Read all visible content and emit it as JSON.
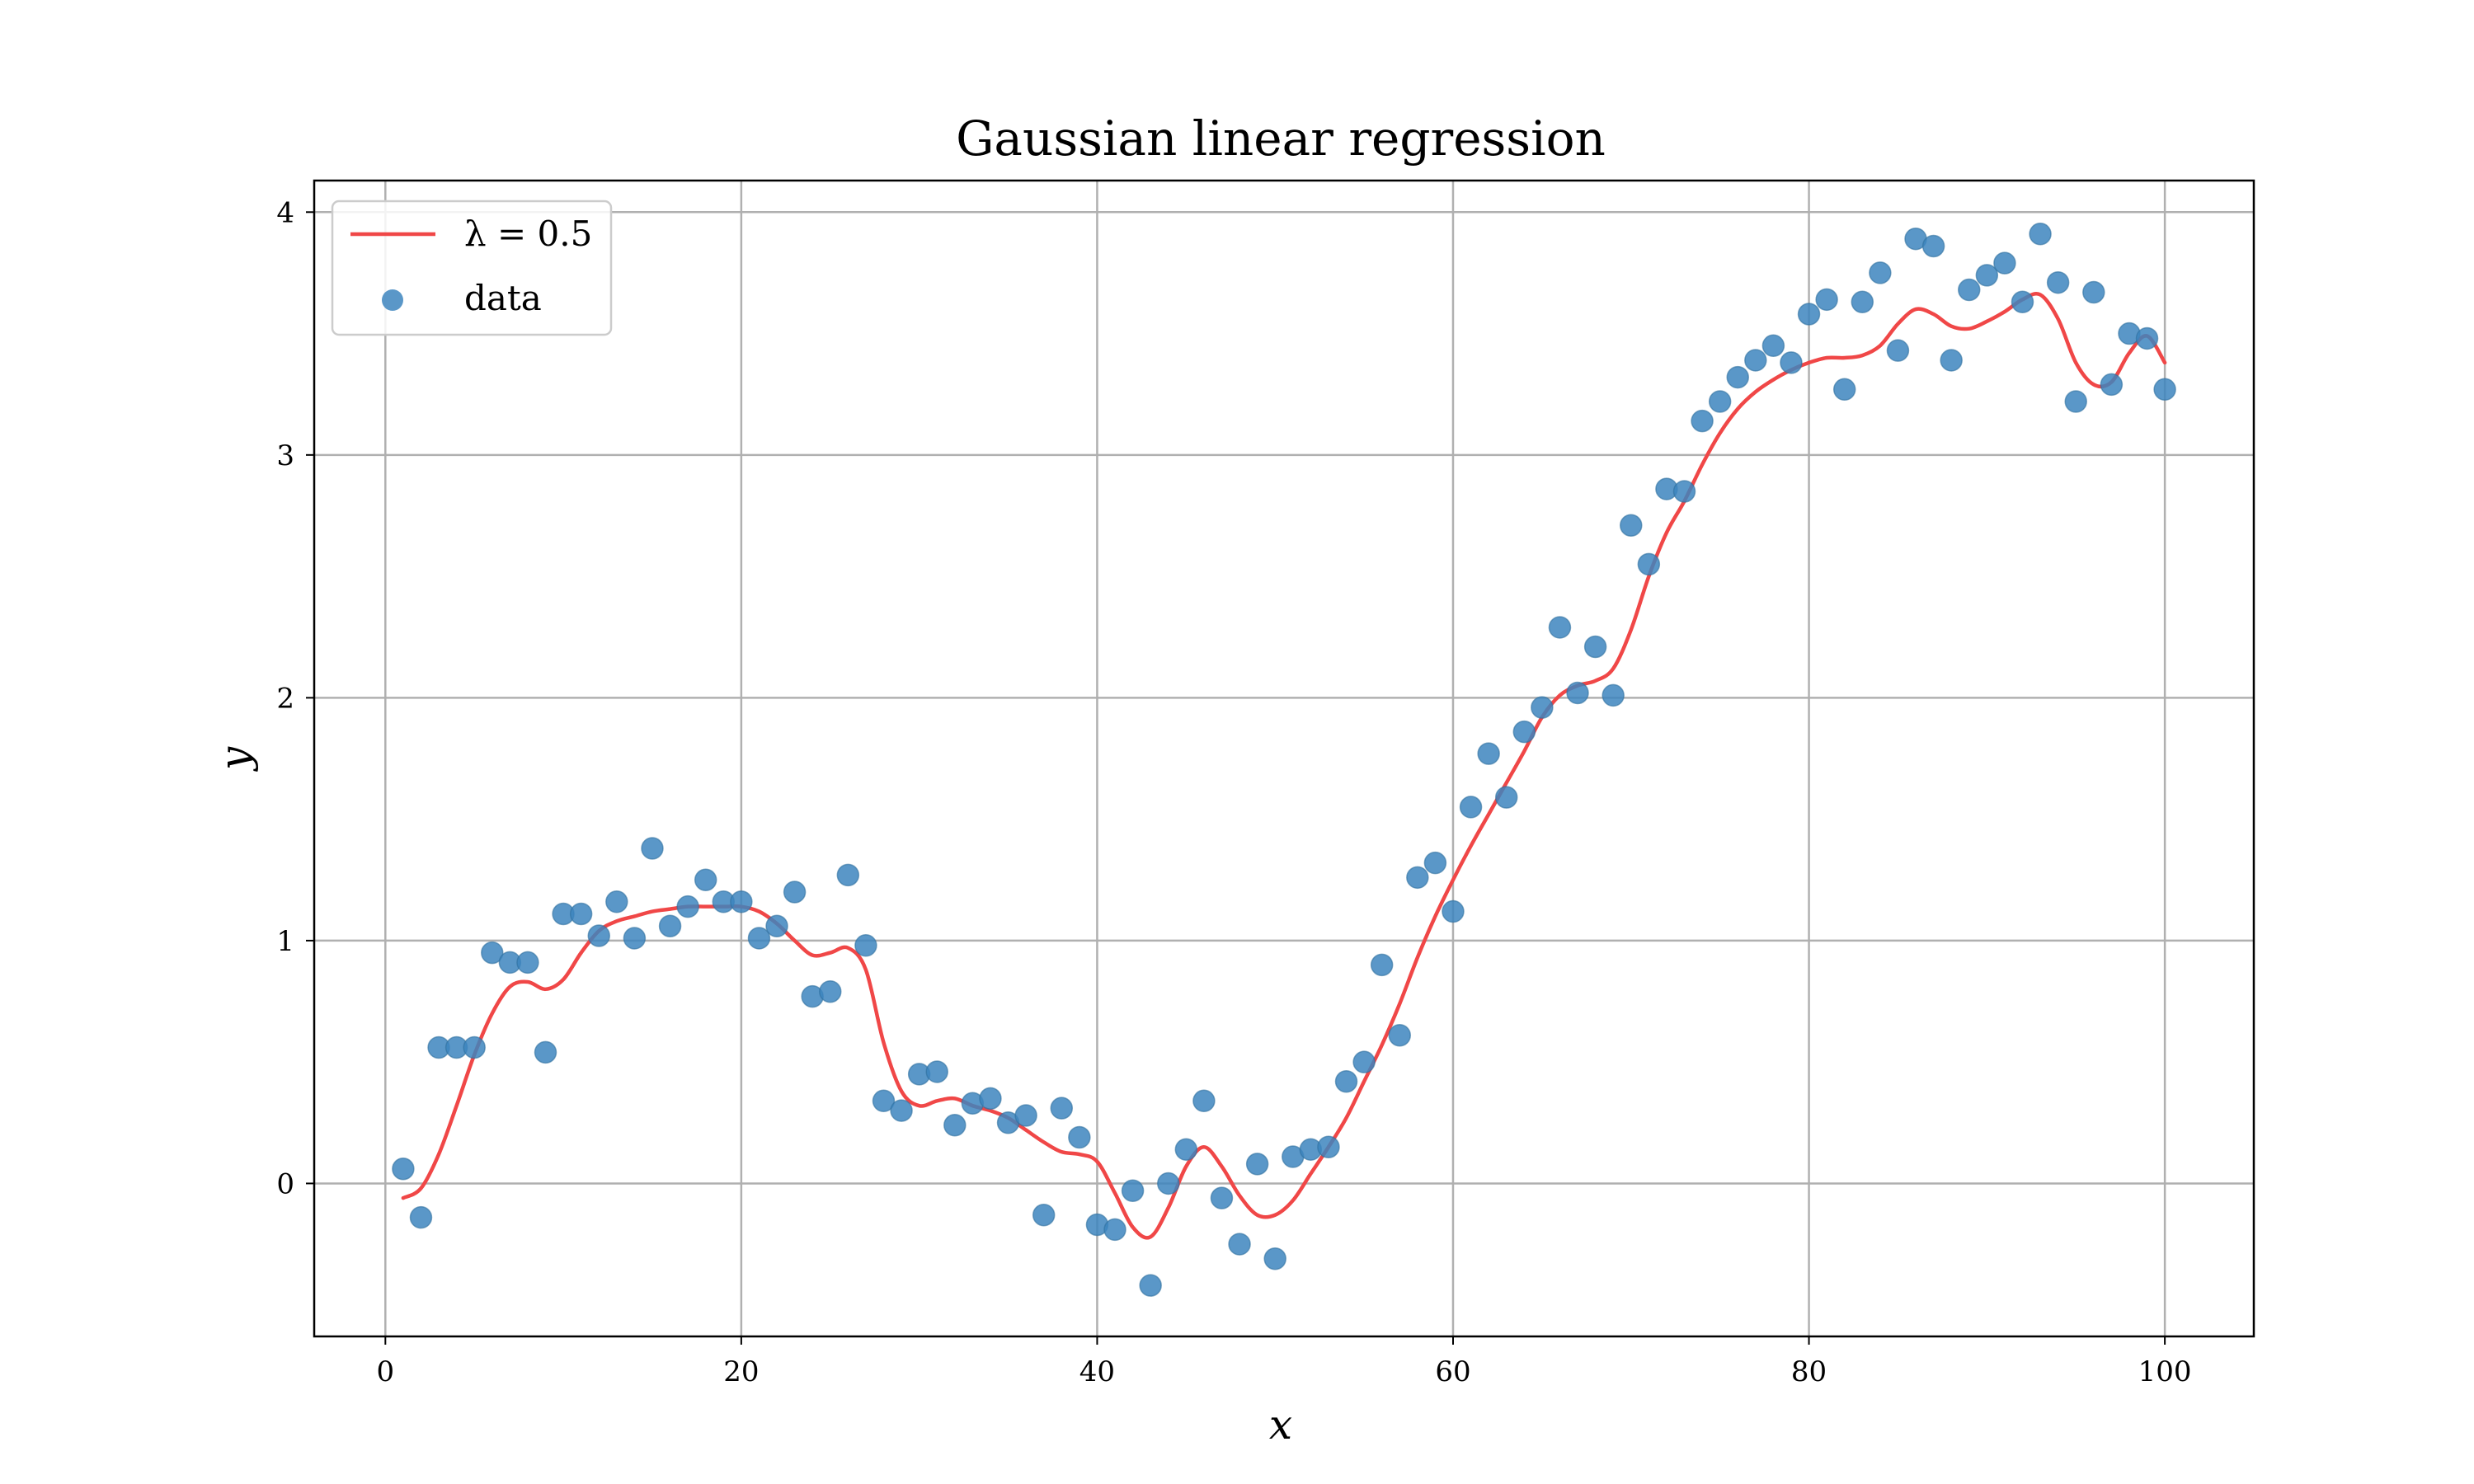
{
  "chart_data": {
    "type": "scatter",
    "title": "Gaussian linear regression",
    "xlabel": "x",
    "ylabel": "y",
    "xlim": [
      -4,
      105
    ],
    "ylim": [
      -0.63,
      4.13
    ],
    "xticks": [
      0,
      20,
      40,
      60,
      80,
      100
    ],
    "yticks": [
      0,
      1,
      2,
      3,
      4
    ],
    "xtick_labels": [
      "0",
      "20",
      "40",
      "60",
      "80",
      "100"
    ],
    "ytick_labels": [
      "0",
      "1",
      "2",
      "3",
      "4"
    ],
    "grid": true,
    "legend_position": "top-left",
    "legend": [
      {
        "label": "λ = 0.5",
        "kind": "line",
        "color": "#f04747"
      },
      {
        "label": "data",
        "kind": "marker",
        "color": "#3d85be"
      }
    ],
    "series": [
      {
        "name": "data",
        "kind": "scatter",
        "color": "#3d85be",
        "x": [
          1,
          2,
          3,
          4,
          5,
          6,
          7,
          8,
          9,
          10,
          11,
          12,
          13,
          14,
          15,
          16,
          17,
          18,
          19,
          20,
          21,
          22,
          23,
          24,
          25,
          26,
          27,
          28,
          29,
          30,
          31,
          32,
          33,
          34,
          35,
          36,
          37,
          38,
          39,
          40,
          41,
          42,
          43,
          44,
          45,
          46,
          47,
          48,
          49,
          50,
          51,
          52,
          53,
          54,
          55,
          56,
          57,
          58,
          59,
          60,
          61,
          62,
          63,
          64,
          65,
          66,
          67,
          68,
          69,
          70,
          71,
          72,
          73,
          74,
          75,
          76,
          77,
          78,
          79,
          80,
          81,
          82,
          83,
          84,
          85,
          86,
          87,
          88,
          89,
          90,
          91,
          92,
          93,
          94,
          95,
          96,
          97,
          98,
          99,
          100
        ],
        "y": [
          0.06,
          -0.14,
          0.56,
          0.56,
          0.56,
          0.95,
          0.91,
          0.91,
          0.54,
          1.11,
          1.11,
          1.02,
          1.16,
          1.01,
          1.38,
          1.06,
          1.14,
          1.25,
          1.16,
          1.16,
          1.01,
          1.06,
          1.2,
          0.77,
          0.79,
          1.27,
          0.98,
          0.34,
          0.3,
          0.45,
          0.46,
          0.24,
          0.33,
          0.35,
          0.25,
          0.28,
          -0.13,
          0.31,
          0.19,
          -0.17,
          -0.19,
          -0.03,
          -0.42,
          0.0,
          0.14,
          0.34,
          -0.06,
          -0.25,
          0.08,
          -0.31,
          0.11,
          0.14,
          0.15,
          0.42,
          0.5,
          0.9,
          0.61,
          1.26,
          1.32,
          1.12,
          1.55,
          1.77,
          1.59,
          1.86,
          1.96,
          2.29,
          2.02,
          2.21,
          2.01,
          2.71,
          2.55,
          2.86,
          2.85,
          3.14,
          3.22,
          3.32,
          3.39,
          3.45,
          3.38,
          3.58,
          3.64,
          3.27,
          3.63,
          3.75,
          3.43,
          3.89,
          3.86,
          3.39,
          3.68,
          3.74,
          3.79,
          3.63,
          3.91,
          3.71,
          3.22,
          3.67,
          3.29,
          3.5,
          3.48,
          3.27
        ]
      },
      {
        "name": "λ = 0.5",
        "kind": "line",
        "color": "#f04747",
        "x": [
          1,
          2,
          3,
          4,
          5,
          6,
          7,
          8,
          9,
          10,
          11,
          12,
          13,
          14,
          15,
          16,
          17,
          18,
          19,
          20,
          21,
          22,
          23,
          24,
          25,
          26,
          27,
          28,
          29,
          30,
          31,
          32,
          33,
          34,
          35,
          36,
          37,
          38,
          39,
          40,
          41,
          42,
          43,
          44,
          45,
          46,
          47,
          48,
          49,
          50,
          51,
          52,
          53,
          54,
          55,
          56,
          57,
          58,
          59,
          60,
          61,
          62,
          63,
          64,
          65,
          66,
          67,
          68,
          69,
          70,
          71,
          72,
          73,
          74,
          75,
          76,
          77,
          78,
          79,
          80,
          81,
          82,
          83,
          84,
          85,
          86,
          87,
          88,
          89,
          90,
          91,
          92,
          93,
          94,
          95,
          96,
          97,
          98,
          99,
          100
        ],
        "y": [
          -0.06,
          -0.02,
          0.12,
          0.32,
          0.53,
          0.7,
          0.81,
          0.83,
          0.8,
          0.84,
          0.95,
          1.04,
          1.08,
          1.1,
          1.12,
          1.13,
          1.14,
          1.14,
          1.14,
          1.14,
          1.12,
          1.07,
          1.0,
          0.94,
          0.95,
          0.97,
          0.88,
          0.58,
          0.38,
          0.32,
          0.34,
          0.35,
          0.32,
          0.3,
          0.27,
          0.22,
          0.17,
          0.13,
          0.12,
          0.09,
          -0.04,
          -0.18,
          -0.22,
          -0.1,
          0.07,
          0.15,
          0.07,
          -0.05,
          -0.13,
          -0.13,
          -0.07,
          0.04,
          0.15,
          0.27,
          0.42,
          0.57,
          0.74,
          0.93,
          1.1,
          1.25,
          1.39,
          1.52,
          1.65,
          1.78,
          1.92,
          2.01,
          2.05,
          2.07,
          2.12,
          2.28,
          2.5,
          2.68,
          2.81,
          2.96,
          3.09,
          3.19,
          3.26,
          3.31,
          3.35,
          3.38,
          3.4,
          3.4,
          3.41,
          3.45,
          3.54,
          3.6,
          3.58,
          3.53,
          3.52,
          3.55,
          3.59,
          3.64,
          3.66,
          3.56,
          3.38,
          3.29,
          3.3,
          3.42,
          3.49,
          3.38
        ]
      }
    ]
  }
}
